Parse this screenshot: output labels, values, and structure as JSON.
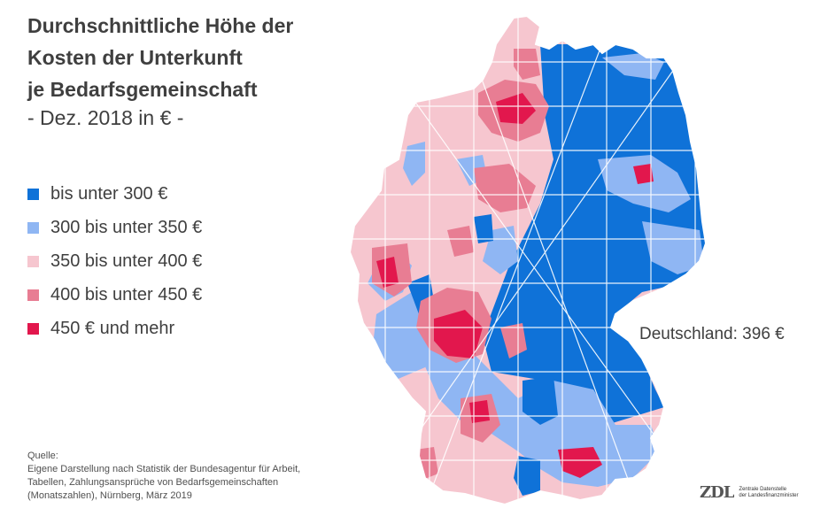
{
  "title": {
    "line1": "Durchschnittliche Höhe der",
    "line2": "Kosten der Unterkunft",
    "line3": "je Bedarfsgemeinschaft"
  },
  "subtitle": "- Dez. 2018 in € -",
  "legend": [
    {
      "label": "bis unter 300 €",
      "color": "#0f72d8"
    },
    {
      "label": "300 bis unter 350 €",
      "color": "#8fb6f3"
    },
    {
      "label": "350 bis unter 400 €",
      "color": "#f6c6cf"
    },
    {
      "label": "400 bis unter 450 €",
      "color": "#e87d93"
    },
    {
      "label": "450 € und mehr",
      "color": "#e2174d"
    }
  ],
  "national_average": "Deutschland: 396 €",
  "source": {
    "line1": "Quelle:",
    "line2": "Eigene Darstellung nach Statistik der Bundesagentur für Arbeit,",
    "line3": "Tabellen, Zahlungsansprüche von Bedarfsgemeinschaften",
    "line4": "(Monatszahlen), Nürnberg, März 2019"
  },
  "logo": {
    "mark": "ZDL",
    "line1": "Zentrale Datenstelle",
    "line2": "der Landesfinanzminister"
  }
}
